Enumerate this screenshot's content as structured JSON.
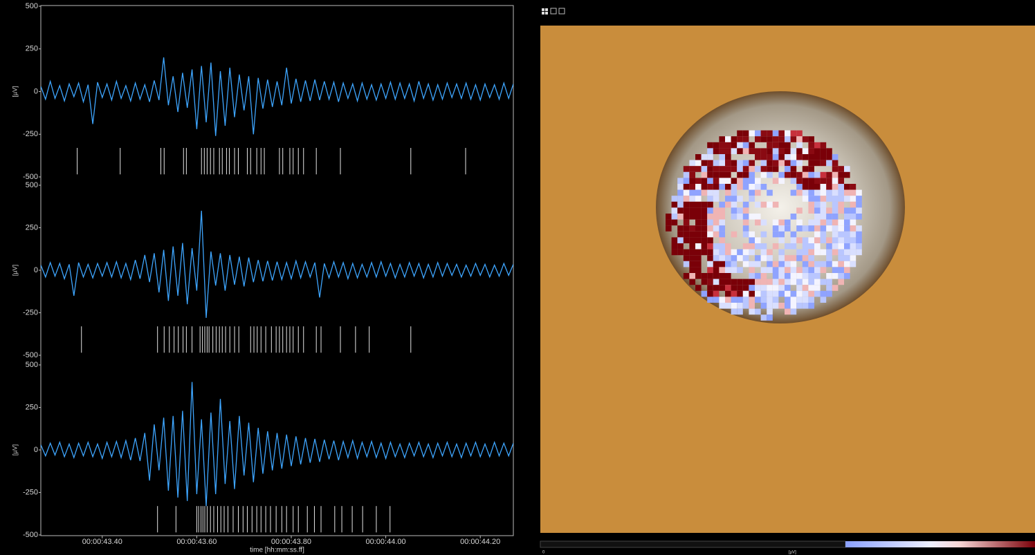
{
  "chart_data": [
    {
      "type": "line",
      "ylabel": "[µV]",
      "ylim": [
        -500,
        500
      ],
      "yticks": [
        500,
        250,
        0,
        -250,
        -500
      ],
      "xlim": [
        43.27,
        44.27
      ],
      "x": [
        43.27,
        43.28,
        43.29,
        43.3,
        43.31,
        43.32,
        43.33,
        43.34,
        43.35,
        43.36,
        43.37,
        43.38,
        43.39,
        43.4,
        43.41,
        43.42,
        43.43,
        43.44,
        43.45,
        43.46,
        43.47,
        43.48,
        43.49,
        43.5,
        43.51,
        43.52,
        43.53,
        43.54,
        43.55,
        43.56,
        43.57,
        43.58,
        43.59,
        43.6,
        43.61,
        43.62,
        43.63,
        43.64,
        43.65,
        43.66,
        43.67,
        43.68,
        43.69,
        43.7,
        43.71,
        43.72,
        43.73,
        43.74,
        43.75,
        43.76,
        43.77,
        43.78,
        43.79,
        43.8,
        43.81,
        43.82,
        43.83,
        43.84,
        43.85,
        43.86,
        43.87,
        43.88,
        43.89,
        43.9,
        43.91,
        43.92,
        43.93,
        43.94,
        43.95,
        43.96,
        43.97,
        43.98,
        43.99,
        44.0,
        44.01,
        44.02,
        44.03,
        44.04,
        44.05,
        44.06,
        44.07,
        44.08,
        44.09,
        44.1,
        44.11,
        44.12,
        44.13,
        44.14,
        44.15,
        44.16,
        44.17,
        44.18,
        44.19,
        44.2,
        44.21,
        44.22,
        44.23,
        44.24,
        44.25,
        44.26,
        44.27
      ],
      "series": [
        {
          "color": "#3ea6ff",
          "values": [
            30,
            -45,
            60,
            -40,
            35,
            -55,
            45,
            -30,
            50,
            -60,
            40,
            -190,
            55,
            -35,
            45,
            -50,
            60,
            -40,
            35,
            -55,
            50,
            -45,
            40,
            -60,
            65,
            -50,
            200,
            -80,
            90,
            -120,
            110,
            -95,
            130,
            -220,
            150,
            -180,
            170,
            -260,
            120,
            -200,
            140,
            -150,
            100,
            -110,
            90,
            -250,
            80,
            -100,
            70,
            -90,
            60,
            -80,
            140,
            -70,
            75,
            -60,
            65,
            -55,
            70,
            -50,
            60,
            -45,
            55,
            -60,
            50,
            -40,
            45,
            -55,
            50,
            -45,
            40,
            -50,
            45,
            -40,
            55,
            -45,
            50,
            -40,
            45,
            -55,
            60,
            -40,
            45,
            -50,
            40,
            -45,
            50,
            -35,
            45,
            -40,
            50,
            -45,
            40,
            -50,
            45,
            -35,
            40,
            -45,
            50,
            -40,
            45
          ]
        }
      ],
      "spike_times": [
        43.347,
        43.438,
        43.524,
        43.531,
        43.572,
        43.578,
        43.61,
        43.616,
        43.622,
        43.629,
        43.636,
        43.648,
        43.654,
        43.663,
        43.669,
        43.68,
        43.688,
        43.707,
        43.714,
        43.727,
        43.736,
        43.743,
        43.775,
        43.782,
        43.797,
        43.804,
        43.815,
        43.826,
        43.853,
        43.904,
        44.053,
        44.169
      ]
    },
    {
      "type": "line",
      "ylabel": "[µV]",
      "ylim": [
        -500,
        500
      ],
      "yticks": [
        500,
        250,
        0,
        -250,
        -500
      ],
      "xlim": [
        43.27,
        44.27
      ],
      "x": [
        43.27,
        43.28,
        43.29,
        43.3,
        43.31,
        43.32,
        43.33,
        43.34,
        43.35,
        43.36,
        43.37,
        43.38,
        43.39,
        43.4,
        43.41,
        43.42,
        43.43,
        43.44,
        43.45,
        43.46,
        43.47,
        43.48,
        43.49,
        43.5,
        43.51,
        43.52,
        43.53,
        43.54,
        43.55,
        43.56,
        43.57,
        43.58,
        43.59,
        43.6,
        43.61,
        43.62,
        43.63,
        43.64,
        43.65,
        43.66,
        43.67,
        43.68,
        43.69,
        43.7,
        43.71,
        43.72,
        43.73,
        43.74,
        43.75,
        43.76,
        43.77,
        43.78,
        43.79,
        43.8,
        43.81,
        43.82,
        43.83,
        43.84,
        43.85,
        43.86,
        43.87,
        43.88,
        43.89,
        43.9,
        43.91,
        43.92,
        43.93,
        43.94,
        43.95,
        43.96,
        43.97,
        43.98,
        43.99,
        44.0,
        44.01,
        44.02,
        44.03,
        44.04,
        44.05,
        44.06,
        44.07,
        44.08,
        44.09,
        44.1,
        44.11,
        44.12,
        44.13,
        44.14,
        44.15,
        44.16,
        44.17,
        44.18,
        44.19,
        44.2,
        44.21,
        44.22,
        44.23,
        44.24,
        44.25,
        44.26,
        44.27
      ],
      "series": [
        {
          "color": "#3ea6ff",
          "values": [
            30,
            -40,
            45,
            -35,
            40,
            -50,
            35,
            -150,
            45,
            -40,
            35,
            -45,
            40,
            -35,
            45,
            -40,
            50,
            -45,
            40,
            -55,
            60,
            -50,
            90,
            -70,
            100,
            -130,
            120,
            -180,
            140,
            -150,
            160,
            -200,
            130,
            -120,
            350,
            -280,
            110,
            -90,
            100,
            -120,
            90,
            -85,
            80,
            -95,
            75,
            -70,
            60,
            -65,
            55,
            -60,
            50,
            -55,
            45,
            -50,
            55,
            -45,
            50,
            -40,
            45,
            -160,
            40,
            -45,
            50,
            -40,
            45,
            -50,
            40,
            -45,
            35,
            -40,
            45,
            -40,
            50,
            -35,
            40,
            -45,
            35,
            -40,
            45,
            -35,
            40,
            -45,
            35,
            -40,
            45,
            -35,
            40,
            -30,
            35,
            -40,
            30,
            -35,
            40,
            -30,
            35,
            -40,
            30,
            -35,
            40,
            -30,
            35
          ]
        }
      ],
      "spike_times": [
        43.356,
        43.517,
        43.531,
        43.542,
        43.552,
        43.561,
        43.571,
        43.578,
        43.59,
        43.607,
        43.612,
        43.617,
        43.622,
        43.626,
        43.634,
        43.641,
        43.648,
        43.654,
        43.661,
        43.67,
        43.68,
        43.689,
        43.714,
        43.721,
        43.728,
        43.736,
        43.746,
        43.758,
        43.768,
        43.775,
        43.782,
        43.79,
        43.797,
        43.804,
        43.815,
        43.826,
        43.853,
        43.863,
        43.904,
        43.936,
        43.965,
        44.053
      ]
    },
    {
      "type": "line",
      "ylabel": "[µV]",
      "xlabel": "time [hh:mm:ss.ff]",
      "ylim": [
        -500,
        500
      ],
      "yticks": [
        500,
        250,
        0,
        -250,
        -500
      ],
      "xlim": [
        43.27,
        44.27
      ],
      "xticks": [
        {
          "value": 43.4,
          "label": "00:00:43.40"
        },
        {
          "value": 43.6,
          "label": "00:00:43.60"
        },
        {
          "value": 43.8,
          "label": "00:00:43.80"
        },
        {
          "value": 44.0,
          "label": "00:00:44.00"
        },
        {
          "value": 44.2,
          "label": "00:00:44.20"
        }
      ],
      "x": [
        43.27,
        43.28,
        43.29,
        43.3,
        43.31,
        43.32,
        43.33,
        43.34,
        43.35,
        43.36,
        43.37,
        43.38,
        43.39,
        43.4,
        43.41,
        43.42,
        43.43,
        43.44,
        43.45,
        43.46,
        43.47,
        43.48,
        43.49,
        43.5,
        43.51,
        43.52,
        43.53,
        43.54,
        43.55,
        43.56,
        43.57,
        43.58,
        43.59,
        43.6,
        43.61,
        43.62,
        43.63,
        43.64,
        43.65,
        43.66,
        43.67,
        43.68,
        43.69,
        43.7,
        43.71,
        43.72,
        43.73,
        43.74,
        43.75,
        43.76,
        43.77,
        43.78,
        43.79,
        43.8,
        43.81,
        43.82,
        43.83,
        43.84,
        43.85,
        43.86,
        43.87,
        43.88,
        43.89,
        43.9,
        43.91,
        43.92,
        43.93,
        43.94,
        43.95,
        43.96,
        43.97,
        43.98,
        43.99,
        44.0,
        44.01,
        44.02,
        44.03,
        44.04,
        44.05,
        44.06,
        44.07,
        44.08,
        44.09,
        44.1,
        44.11,
        44.12,
        44.13,
        44.14,
        44.15,
        44.16,
        44.17,
        44.18,
        44.19,
        44.2,
        44.21,
        44.22,
        44.23,
        44.24,
        44.25,
        44.26,
        44.27
      ],
      "series": [
        {
          "color": "#3ea6ff",
          "values": [
            30,
            -35,
            40,
            -30,
            45,
            -40,
            35,
            -45,
            40,
            -35,
            45,
            -40,
            35,
            -50,
            45,
            -40,
            50,
            -45,
            55,
            -60,
            70,
            -65,
            100,
            -180,
            150,
            -120,
            190,
            -240,
            200,
            -280,
            230,
            -300,
            400,
            -260,
            180,
            -330,
            220,
            -260,
            300,
            -200,
            170,
            -230,
            200,
            -150,
            160,
            -190,
            130,
            -140,
            110,
            -120,
            100,
            -110,
            90,
            -95,
            80,
            -85,
            70,
            -75,
            65,
            -70,
            60,
            -55,
            55,
            -60,
            50,
            -45,
            55,
            -50,
            45,
            -40,
            50,
            -45,
            40,
            -50,
            45,
            -40,
            35,
            -45,
            40,
            -35,
            45,
            -40,
            35,
            -45,
            40,
            -35,
            45,
            -40,
            35,
            -45,
            40,
            -35,
            45,
            -40,
            35,
            -40,
            45,
            -35,
            40,
            -35,
            40
          ]
        }
      ],
      "spike_times": [
        43.517,
        43.556,
        43.6,
        43.604,
        43.609,
        43.613,
        43.617,
        43.622,
        43.629,
        43.636,
        43.644,
        43.651,
        43.658,
        43.666,
        43.677,
        43.688,
        43.698,
        43.707,
        43.717,
        43.727,
        43.736,
        43.746,
        43.756,
        43.768,
        43.78,
        43.79,
        43.804,
        43.815,
        43.834,
        43.849,
        43.863,
        43.892,
        43.907,
        43.929,
        43.951,
        43.98,
        44.009
      ]
    }
  ],
  "heatmap": {
    "colorbar": {
      "start_label": "0",
      "label": "[µV]"
    }
  }
}
